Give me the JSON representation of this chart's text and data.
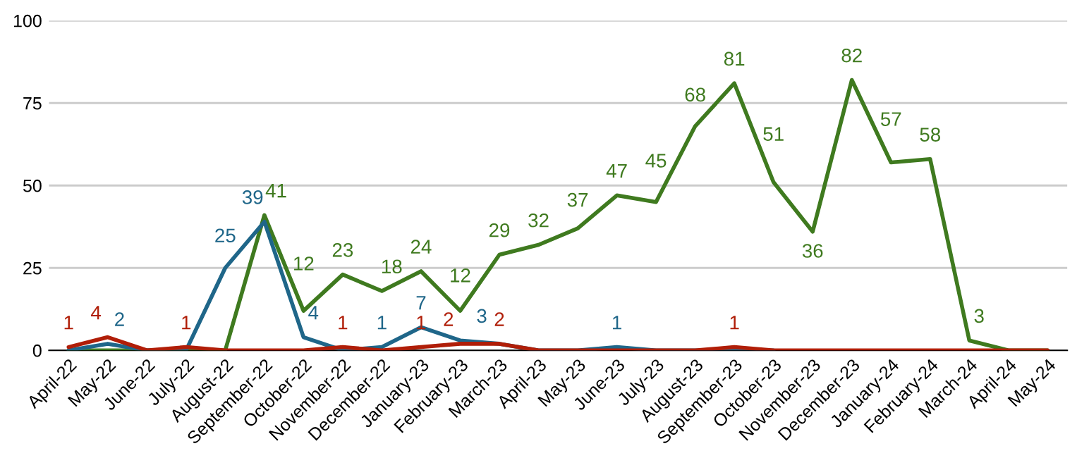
{
  "chart_data": {
    "type": "line",
    "categories": [
      "April-22",
      "May-22",
      "June-22",
      "July-22",
      "August-22",
      "September-22",
      "October-22",
      "November-22",
      "December-22",
      "January-23",
      "February-23",
      "March-23",
      "April-23",
      "May-23",
      "June-23",
      "July-23",
      "August-23",
      "September-23",
      "October-23",
      "November-23",
      "December-23",
      "January-24",
      "February-24",
      "March-24",
      "April-24",
      "May-24"
    ],
    "series": [
      {
        "color": "#3f7a1f",
        "values": [
          0,
          0,
          0,
          0,
          0,
          41,
          12,
          23,
          18,
          24,
          12,
          29,
          32,
          37,
          47,
          45,
          68,
          81,
          51,
          36,
          82,
          57,
          58,
          3,
          0,
          0
        ],
        "value_labels": [
          null,
          null,
          null,
          null,
          null,
          "41",
          "12",
          "23",
          "18",
          "24",
          "12",
          "29",
          "32",
          "37",
          "47",
          "45",
          "68",
          "81",
          "51",
          "36",
          "82",
          "57",
          "58",
          "3",
          null,
          null
        ]
      },
      {
        "color": "#1f6689",
        "values": [
          0,
          2,
          0,
          0,
          25,
          39,
          4,
          0,
          1,
          7,
          3,
          2,
          0,
          0,
          1,
          0,
          0,
          0,
          0,
          null,
          null,
          null,
          null,
          null,
          null,
          null
        ],
        "value_labels": [
          null,
          "2",
          null,
          null,
          "25",
          "39",
          "4",
          null,
          "1",
          "7",
          "3",
          null,
          null,
          null,
          "1",
          null,
          null,
          null,
          null,
          null,
          null,
          null,
          null,
          null,
          null,
          null
        ]
      },
      {
        "color": "#b01e08",
        "values": [
          1,
          4,
          0,
          1,
          0,
          0,
          0,
          1,
          0,
          1,
          2,
          2,
          0,
          0,
          0,
          0,
          0,
          1,
          0,
          0,
          0,
          0,
          0,
          0,
          0,
          0
        ],
        "value_labels": [
          "1",
          "4",
          null,
          "1",
          null,
          null,
          null,
          "1",
          null,
          "1",
          "2",
          "2",
          null,
          null,
          null,
          null,
          null,
          "1",
          null,
          null,
          null,
          null,
          null,
          null,
          null,
          null
        ]
      }
    ],
    "ylim": [
      0,
      100
    ],
    "yticks": [
      0,
      25,
      50,
      75,
      100
    ],
    "grid": "y",
    "legend": false
  }
}
